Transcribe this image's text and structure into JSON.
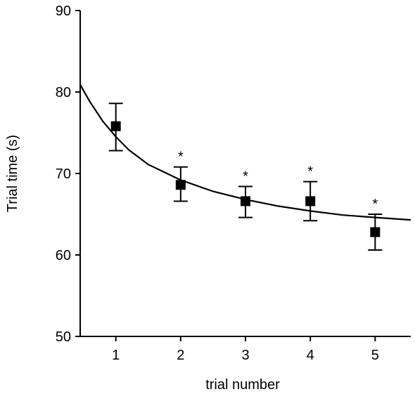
{
  "chart_data": {
    "type": "scatter",
    "title": "",
    "xlabel": "trial number",
    "ylabel": "Trial time (s)",
    "xlim": [
      0.45,
      5.55
    ],
    "ylim": [
      50,
      90
    ],
    "x_ticks": [
      "1",
      "2",
      "3",
      "4",
      "5"
    ],
    "y_ticks": [
      "50",
      "60",
      "70",
      "80",
      "90"
    ],
    "grid": false,
    "legend": "none",
    "series": [
      {
        "type": "scatter",
        "marker": "square",
        "x": [
          1,
          2,
          3,
          4,
          5
        ],
        "y": [
          75.8,
          68.6,
          66.6,
          66.6,
          62.8
        ],
        "error_low": [
          72.8,
          66.6,
          64.6,
          64.2,
          60.6
        ],
        "error_high": [
          78.6,
          70.8,
          68.4,
          69.0,
          65.0
        ],
        "annotations": [
          "",
          "*",
          "*",
          "*",
          "*"
        ]
      },
      {
        "type": "line",
        "x": [
          0.45,
          0.6,
          0.8,
          1.0,
          1.2,
          1.5,
          2.0,
          2.5,
          3.0,
          3.5,
          4.0,
          4.5,
          5.0,
          5.55
        ],
        "y": [
          80.9,
          78.8,
          76.4,
          74.5,
          72.9,
          71.1,
          69.2,
          67.8,
          66.8,
          66.0,
          65.4,
          64.9,
          64.6,
          64.3
        ]
      }
    ]
  }
}
